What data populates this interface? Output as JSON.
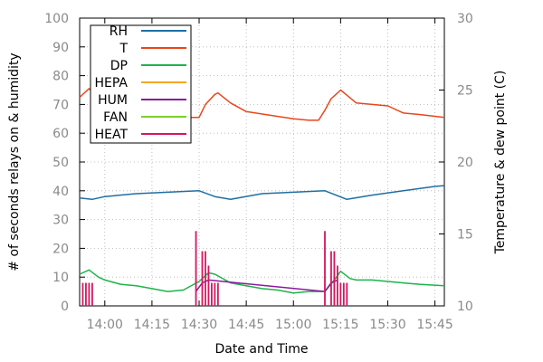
{
  "chart_data": {
    "type": "line",
    "title": "",
    "xlabel": "Date and Time",
    "ylabel": "# of seconds relays on & humidity",
    "y2label": "Temperature & dew point (C)",
    "xlim": [
      "13:52",
      "15:48"
    ],
    "ylim": [
      0,
      100
    ],
    "y2lim": [
      10,
      30
    ],
    "x_ticks": [
      "14:00",
      "14:15",
      "14:30",
      "14:45",
      "15:00",
      "15:15",
      "15:30",
      "15:45"
    ],
    "y_ticks": [
      "0",
      "10",
      "20",
      "30",
      "40",
      "50",
      "60",
      "70",
      "80",
      "90",
      "100"
    ],
    "y2_ticks": [
      "10",
      "15",
      "20",
      "25",
      "30"
    ],
    "grid": true,
    "legend_position": "top-left",
    "colors": {
      "RH": "#1f6fa3",
      "T": "#e8471c",
      "DP": "#1db34a",
      "HEPA": "#f5a623",
      "HUM": "#8a1a9c",
      "FAN": "#7bd12a",
      "HEAT": "#d6165f"
    },
    "series": [
      {
        "name": "RH",
        "axis": "left",
        "x": [
          "13:52",
          "13:56",
          "14:00",
          "14:10",
          "14:20",
          "14:30",
          "14:35",
          "14:40",
          "14:50",
          "15:00",
          "15:10",
          "15:17",
          "15:25",
          "15:35",
          "15:45",
          "15:48"
        ],
        "values": [
          37.5,
          37,
          38,
          39,
          39.5,
          40,
          38,
          37,
          39,
          39.5,
          40,
          37,
          38.5,
          40,
          41.5,
          41.8
        ]
      },
      {
        "name": "T",
        "axis": "right",
        "x": [
          "13:52",
          "13:55",
          "14:00",
          "14:05",
          "14:10",
          "14:15",
          "14:20",
          "14:25",
          "14:30",
          "14:32",
          "14:35",
          "14:36",
          "14:40",
          "14:45",
          "15:00",
          "15:05",
          "15:08",
          "15:10",
          "15:12",
          "15:13",
          "15:15",
          "15:20",
          "15:25",
          "15:30",
          "15:35",
          "15:40",
          "15:48"
        ],
        "values": [
          24.5,
          25.1,
          24,
          23.7,
          23.4,
          23.3,
          23.3,
          23.1,
          23.1,
          24,
          24.7,
          24.8,
          24.1,
          23.5,
          23,
          22.9,
          22.9,
          23.6,
          24.4,
          24.6,
          25,
          24.1,
          24,
          23.9,
          23.4,
          23.3,
          23.1
        ]
      },
      {
        "name": "DP",
        "axis": "right",
        "x": [
          "13:52",
          "13:55",
          "13:58",
          "14:00",
          "14:05",
          "14:10",
          "14:15",
          "14:20",
          "14:25",
          "14:30",
          "14:33",
          "14:35",
          "14:40",
          "14:45",
          "14:50",
          "14:55",
          "15:00",
          "15:05",
          "15:10",
          "15:13",
          "15:15",
          "15:18",
          "15:20",
          "15:25",
          "15:30",
          "15:35",
          "15:40",
          "15:48"
        ],
        "values": [
          12.2,
          12.5,
          12,
          11.8,
          11.5,
          11.4,
          11.2,
          11,
          11.1,
          11.7,
          12.3,
          12.2,
          11.6,
          11.4,
          11.2,
          11.1,
          10.9,
          11,
          11,
          11.8,
          12.4,
          11.9,
          11.8,
          11.8,
          11.7,
          11.6,
          11.5,
          11.4
        ]
      },
      {
        "name": "HEPA",
        "axis": "left",
        "x": [],
        "values": []
      },
      {
        "name": "HUM",
        "axis": "left",
        "x": [
          "14:29",
          "14:31",
          "14:33",
          "15:10",
          "15:12",
          "15:14"
        ],
        "values": [
          5,
          8,
          9,
          5,
          8,
          9
        ]
      },
      {
        "name": "FAN",
        "axis": "left",
        "x": [],
        "values": []
      },
      {
        "name": "HEAT",
        "axis": "left",
        "bars": true,
        "x": [
          "13:53",
          "13:54",
          "13:55",
          "13:56",
          "14:29",
          "14:31",
          "14:32",
          "14:33",
          "14:34",
          "14:35",
          "14:36",
          "15:10",
          "15:12",
          "15:13",
          "15:14",
          "15:15",
          "15:16",
          "15:17"
        ],
        "values": [
          8,
          8,
          8,
          8,
          26,
          19,
          19,
          14,
          8,
          8,
          8,
          26,
          19,
          19,
          14,
          8,
          8,
          8
        ]
      }
    ]
  }
}
